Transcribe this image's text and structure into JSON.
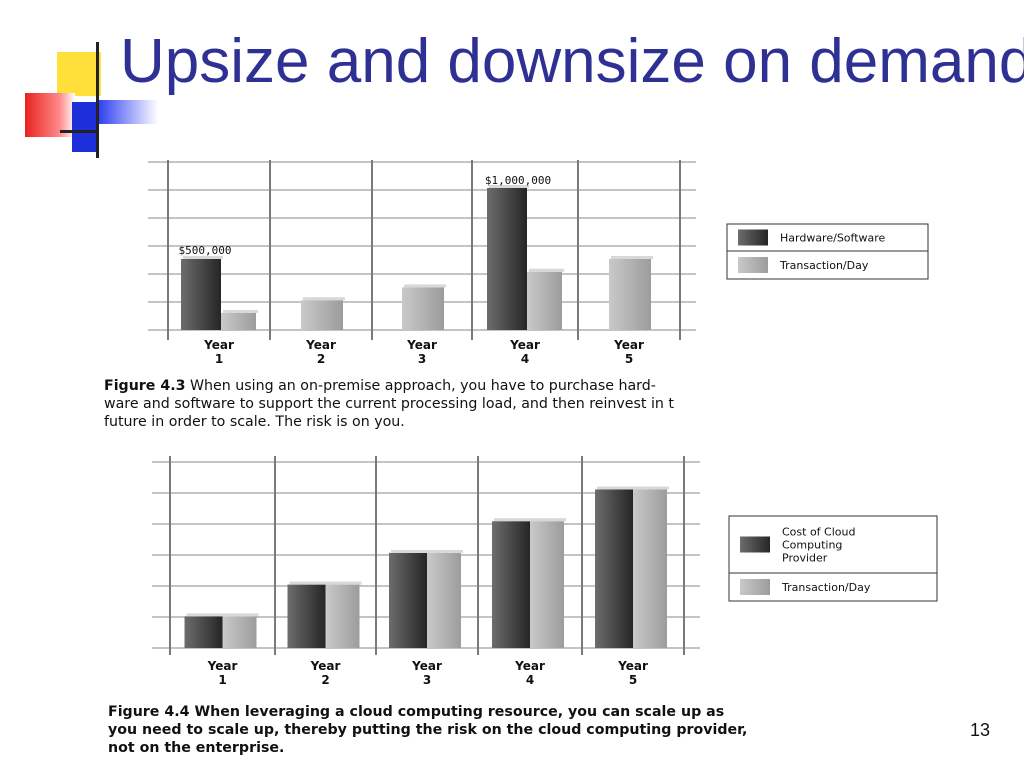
{
  "slide": {
    "title": "Upsize and downsize on demand",
    "page_number": "13"
  },
  "figure1": {
    "caption_label": "Figure 4.3",
    "caption_text": "When using an on-premise approach, you have to purchase hard-\nware and software to support the current processing load, and then reinvest in t\nfuture in order to scale. The risk is on you."
  },
  "figure2": {
    "caption_label": "Figure 4.4",
    "caption_text": "When leveraging a cloud computing resource, you can scale up as\nyou need to scale up, thereby putting the risk on the cloud computing provider,\nnot on the enterprise."
  },
  "colors": {
    "title": "#2e3193",
    "dark_bar": "#3c3c3c",
    "light_bar": "#b4b4b4",
    "grid": "#8a8a8a"
  },
  "chart_data": [
    {
      "type": "bar",
      "categories": [
        "Year 1",
        "Year 2",
        "Year 3",
        "Year 4",
        "Year 5"
      ],
      "series": [
        {
          "name": "Hardware/Software",
          "values": [
            500000,
            0,
            0,
            1000000,
            0
          ]
        },
        {
          "name": "Transaction/Day",
          "values": [
            120000,
            210000,
            300000,
            410000,
            500000
          ]
        }
      ],
      "annotations": [
        "$500,000",
        "$1,000,000"
      ],
      "ylim": [
        0,
        1200000
      ],
      "grid": true,
      "legend_position": "right"
    },
    {
      "type": "bar",
      "categories": [
        "Year 1",
        "Year 2",
        "Year 3",
        "Year 4",
        "Year 5"
      ],
      "series": [
        {
          "name": "Cost of Cloud Computing Provider",
          "values": [
            1,
            2,
            3,
            4,
            5
          ]
        },
        {
          "name": "Transaction/Day",
          "values": [
            1,
            2,
            3,
            4,
            5
          ]
        }
      ],
      "ylim": [
        0,
        6
      ],
      "grid": true,
      "legend_position": "right"
    }
  ]
}
